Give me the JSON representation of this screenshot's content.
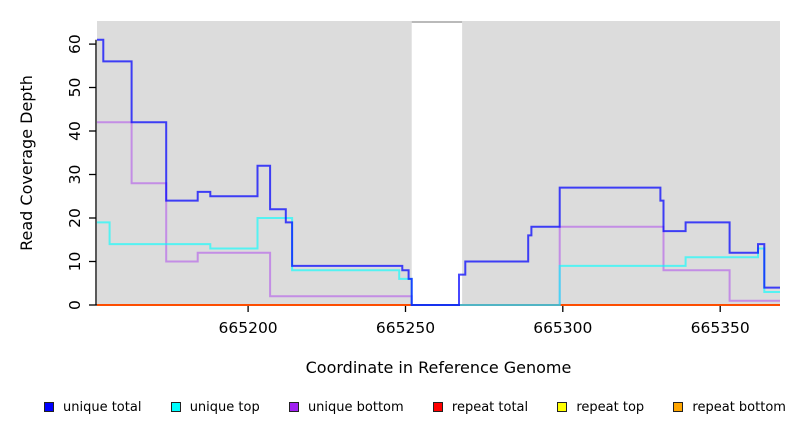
{
  "chart_data": {
    "type": "line",
    "subtype": "step",
    "title": "",
    "xlabel": "Coordinate in Reference Genome",
    "ylabel": "Read Coverage Depth",
    "x_ticks": [
      665200,
      665250,
      665300,
      665350
    ],
    "y_ticks": [
      0,
      10,
      20,
      30,
      40,
      50,
      60
    ],
    "x_range": [
      665152,
      665369
    ],
    "y_range": [
      0,
      65.3
    ],
    "grid": "off",
    "legend_position": "bottom",
    "panel_bg": "#DCDCDC",
    "gap_region": {
      "x_start": 665252,
      "x_end": 665268,
      "color": "#FFFFFF"
    },
    "series": [
      {
        "name": "unique total",
        "color": "#0000FF",
        "opacity": 0.72,
        "steps": [
          [
            665152,
            61
          ],
          [
            665154,
            56
          ],
          [
            665163,
            42
          ],
          [
            665174,
            24
          ],
          [
            665184,
            26
          ],
          [
            665188,
            25
          ],
          [
            665203,
            32
          ],
          [
            665207,
            22
          ],
          [
            665212,
            19
          ],
          [
            665214,
            9
          ],
          [
            665249,
            8
          ],
          [
            665251,
            6
          ],
          [
            665252,
            0
          ],
          [
            665267,
            7
          ],
          [
            665269,
            10
          ],
          [
            665289,
            16
          ],
          [
            665290,
            18
          ],
          [
            665299,
            27
          ],
          [
            665331,
            24
          ],
          [
            665332,
            17
          ],
          [
            665339,
            19
          ],
          [
            665353,
            12
          ],
          [
            665362,
            14
          ],
          [
            665364,
            4
          ]
        ]
      },
      {
        "name": "unique top",
        "color": "#00FFFF",
        "opacity": 0.62,
        "steps": [
          [
            665152,
            19
          ],
          [
            665156,
            14
          ],
          [
            665188,
            13
          ],
          [
            665203,
            20
          ],
          [
            665214,
            8
          ],
          [
            665248,
            6
          ],
          [
            665252,
            0
          ],
          [
            665299,
            9
          ],
          [
            665339,
            11
          ],
          [
            665362,
            13
          ],
          [
            665364,
            3
          ]
        ]
      },
      {
        "name": "unique bottom",
        "color": "#A020F0",
        "opacity": 0.42,
        "steps": [
          [
            665152,
            42
          ],
          [
            665163,
            28
          ],
          [
            665174,
            10
          ],
          [
            665184,
            12
          ],
          [
            665207,
            2
          ],
          [
            665252,
            0
          ],
          [
            665299,
            18
          ],
          [
            665332,
            8
          ],
          [
            665353,
            1
          ]
        ]
      },
      {
        "name": "repeat total",
        "color": "#FF0000",
        "opacity": 0.65,
        "steps": [
          [
            665152,
            0
          ]
        ]
      },
      {
        "name": "repeat top",
        "color": "#FFFF00",
        "opacity": 0.65,
        "steps": [
          [
            665152,
            0
          ]
        ]
      },
      {
        "name": "repeat bottom",
        "color": "#FFA500",
        "opacity": 0.9,
        "steps": [
          [
            665152,
            0
          ]
        ]
      }
    ]
  }
}
